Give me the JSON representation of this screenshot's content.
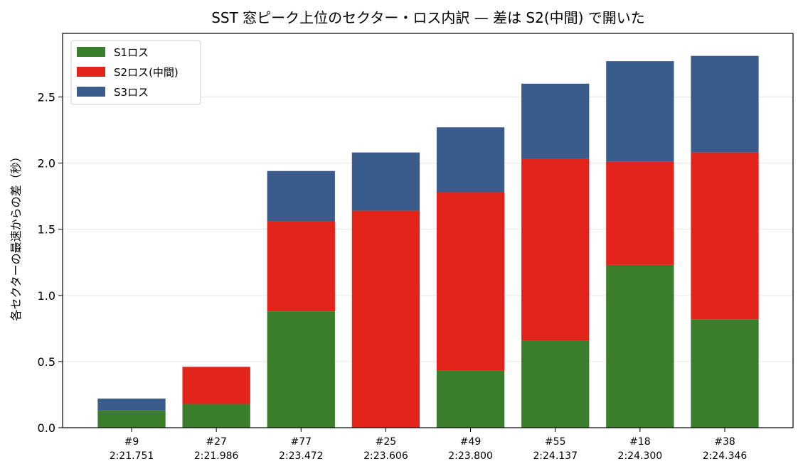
{
  "chart_data": {
    "type": "bar",
    "stacked": true,
    "title": "SST 窓ピーク上位のセクター・ロス内訳 — 差は S2(中間) で開いた",
    "xlabel": "",
    "ylabel": "各セクターの最速からの差（秒）",
    "ylim": [
      0,
      2.98
    ],
    "yticks": [
      "0.0",
      "0.5",
      "1.0",
      "1.5",
      "2.0",
      "2.5"
    ],
    "categories": [
      {
        "car": "#9",
        "time": "2:21.751"
      },
      {
        "car": "#27",
        "time": "2:21.986"
      },
      {
        "car": "#77",
        "time": "2:23.472"
      },
      {
        "car": "#25",
        "time": "2:23.606"
      },
      {
        "car": "#49",
        "time": "2:23.800"
      },
      {
        "car": "#55",
        "time": "2:24.137"
      },
      {
        "car": "#18",
        "time": "2:24.300"
      },
      {
        "car": "#38",
        "time": "2:24.346"
      }
    ],
    "series": [
      {
        "name": "S1ロス",
        "color": "#3a7d2a",
        "values": [
          0.13,
          0.18,
          0.88,
          0.0,
          0.43,
          0.66,
          1.23,
          0.82
        ]
      },
      {
        "name": "S2ロス(中間)",
        "color": "#e3241b",
        "values": [
          0.0,
          0.28,
          0.68,
          1.64,
          1.35,
          1.37,
          0.78,
          1.26
        ]
      },
      {
        "name": "S3ロス",
        "color": "#3b5b8c",
        "values": [
          0.09,
          0.0,
          0.38,
          0.44,
          0.49,
          0.57,
          0.76,
          0.73
        ]
      }
    ],
    "grid": "y",
    "legend": "top-left"
  }
}
